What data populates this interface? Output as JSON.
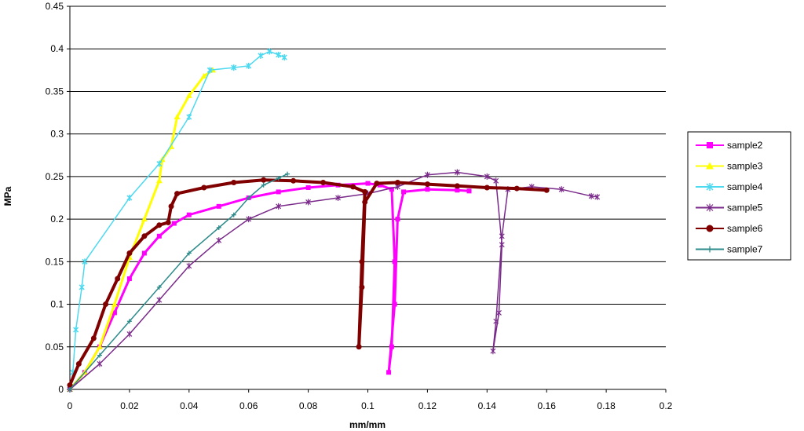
{
  "chart_data": {
    "type": "scatter",
    "title": "",
    "xlabel": "mm/mm",
    "ylabel": "MPa",
    "xlim": [
      0,
      0.2
    ],
    "ylim": [
      0,
      0.45
    ],
    "x_ticks": [
      "0",
      "0.02",
      "0.04",
      "0.06",
      "0.08",
      "0.1",
      "0.12",
      "0.14",
      "0.16",
      "0.18",
      "0.2"
    ],
    "y_ticks": [
      "0",
      "0.05",
      "0.1",
      "0.15",
      "0.2",
      "0.25",
      "0.3",
      "0.35",
      "0.4",
      "0.45"
    ],
    "grid": "horizontal major gridlines",
    "legend_position": "right",
    "series": [
      {
        "name": "sample2",
        "color": "#ff00ff",
        "marker": "square",
        "points": [
          [
            0,
            0
          ],
          [
            0.005,
            0.02
          ],
          [
            0.01,
            0.05
          ],
          [
            0.015,
            0.09
          ],
          [
            0.02,
            0.13
          ],
          [
            0.025,
            0.16
          ],
          [
            0.03,
            0.18
          ],
          [
            0.035,
            0.195
          ],
          [
            0.04,
            0.205
          ],
          [
            0.05,
            0.215
          ],
          [
            0.06,
            0.225
          ],
          [
            0.07,
            0.232
          ],
          [
            0.08,
            0.237
          ],
          [
            0.09,
            0.24
          ],
          [
            0.1,
            0.242
          ],
          [
            0.104,
            0.24
          ],
          [
            0.108,
            0.235
          ],
          [
            0.109,
            0.15
          ],
          [
            0.108,
            0.05
          ],
          [
            0.107,
            0.02
          ],
          [
            0.109,
            0.1
          ],
          [
            0.11,
            0.2
          ],
          [
            0.112,
            0.232
          ],
          [
            0.12,
            0.235
          ],
          [
            0.13,
            0.234
          ],
          [
            0.134,
            0.233
          ]
        ]
      },
      {
        "name": "sample3",
        "color": "#ffff00",
        "marker": "triangle",
        "points": [
          [
            0,
            0
          ],
          [
            0.005,
            0.02
          ],
          [
            0.01,
            0.05
          ],
          [
            0.015,
            0.1
          ],
          [
            0.02,
            0.155
          ],
          [
            0.025,
            0.2
          ],
          [
            0.03,
            0.245
          ],
          [
            0.031,
            0.27
          ],
          [
            0.034,
            0.285
          ],
          [
            0.036,
            0.32
          ],
          [
            0.04,
            0.345
          ],
          [
            0.045,
            0.368
          ],
          [
            0.048,
            0.375
          ]
        ]
      },
      {
        "name": "sample4",
        "color": "#4dd9f0",
        "marker": "star",
        "points": [
          [
            0,
            0
          ],
          [
            0.001,
            0.02
          ],
          [
            0.002,
            0.07
          ],
          [
            0.004,
            0.12
          ],
          [
            0.005,
            0.15
          ],
          [
            0.02,
            0.225
          ],
          [
            0.03,
            0.265
          ],
          [
            0.04,
            0.32
          ],
          [
            0.047,
            0.375
          ],
          [
            0.055,
            0.378
          ],
          [
            0.06,
            0.38
          ],
          [
            0.064,
            0.392
          ],
          [
            0.067,
            0.397
          ],
          [
            0.07,
            0.393
          ],
          [
            0.072,
            0.39
          ]
        ]
      },
      {
        "name": "sample5",
        "color": "#7a2a8a",
        "marker": "asterisk",
        "points": [
          [
            0,
            0
          ],
          [
            0.01,
            0.03
          ],
          [
            0.02,
            0.065
          ],
          [
            0.03,
            0.105
          ],
          [
            0.04,
            0.145
          ],
          [
            0.05,
            0.175
          ],
          [
            0.06,
            0.2
          ],
          [
            0.07,
            0.215
          ],
          [
            0.08,
            0.22
          ],
          [
            0.09,
            0.225
          ],
          [
            0.1,
            0.23
          ],
          [
            0.11,
            0.238
          ],
          [
            0.12,
            0.252
          ],
          [
            0.13,
            0.255
          ],
          [
            0.14,
            0.25
          ],
          [
            0.143,
            0.245
          ],
          [
            0.145,
            0.17
          ],
          [
            0.144,
            0.09
          ],
          [
            0.142,
            0.045
          ],
          [
            0.143,
            0.08
          ],
          [
            0.145,
            0.18
          ],
          [
            0.147,
            0.235
          ],
          [
            0.155,
            0.238
          ],
          [
            0.165,
            0.235
          ],
          [
            0.175,
            0.227
          ],
          [
            0.177,
            0.226
          ]
        ]
      },
      {
        "name": "sample6",
        "color": "#800000",
        "marker": "circle",
        "points": [
          [
            0,
            0.005
          ],
          [
            0.003,
            0.03
          ],
          [
            0.008,
            0.06
          ],
          [
            0.012,
            0.1
          ],
          [
            0.016,
            0.13
          ],
          [
            0.02,
            0.16
          ],
          [
            0.025,
            0.18
          ],
          [
            0.03,
            0.193
          ],
          [
            0.033,
            0.196
          ],
          [
            0.034,
            0.215
          ],
          [
            0.036,
            0.23
          ],
          [
            0.045,
            0.237
          ],
          [
            0.055,
            0.243
          ],
          [
            0.065,
            0.246
          ],
          [
            0.075,
            0.245
          ],
          [
            0.085,
            0.243
          ],
          [
            0.095,
            0.238
          ],
          [
            0.099,
            0.232
          ],
          [
            0.098,
            0.15
          ],
          [
            0.097,
            0.05
          ],
          [
            0.098,
            0.12
          ],
          [
            0.099,
            0.22
          ],
          [
            0.103,
            0.242
          ],
          [
            0.11,
            0.243
          ],
          [
            0.12,
            0.241
          ],
          [
            0.13,
            0.239
          ],
          [
            0.14,
            0.237
          ],
          [
            0.15,
            0.236
          ],
          [
            0.16,
            0.234
          ]
        ]
      },
      {
        "name": "sample7",
        "color": "#2e8b8b",
        "marker": "plus",
        "points": [
          [
            0,
            0
          ],
          [
            0.01,
            0.04
          ],
          [
            0.02,
            0.08
          ],
          [
            0.03,
            0.12
          ],
          [
            0.04,
            0.16
          ],
          [
            0.05,
            0.19
          ],
          [
            0.055,
            0.205
          ],
          [
            0.06,
            0.225
          ],
          [
            0.065,
            0.24
          ],
          [
            0.07,
            0.248
          ],
          [
            0.073,
            0.253
          ]
        ]
      }
    ]
  }
}
